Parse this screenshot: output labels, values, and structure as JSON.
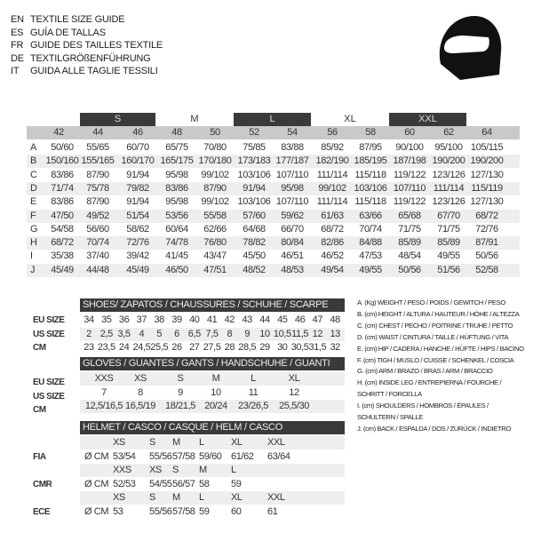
{
  "titles": [
    {
      "code": "EN",
      "text": "TEXTILE SIZE GUIDE"
    },
    {
      "code": "ES",
      "text": "GUÍA DE TALLAS"
    },
    {
      "code": "FR",
      "text": "GUIDE DES TAILLES TEXTILE"
    },
    {
      "code": "DE",
      "text": "TEXTILGRÖßENFÜHRUNG"
    },
    {
      "code": "IT",
      "text": "GUIDA ALLE TAGLIE TESSILI"
    }
  ],
  "icon": "helmet-icon",
  "textile": {
    "size_bands": [
      "S",
      "M",
      "L",
      "XL",
      "XXL"
    ],
    "columns": [
      "42",
      "44",
      "46",
      "48",
      "50",
      "52",
      "54",
      "56",
      "58",
      "60",
      "62",
      "64"
    ],
    "rows": [
      {
        "label": "A",
        "values": [
          "50/60",
          "55/65",
          "60/70",
          "65/75",
          "70/80",
          "75/85",
          "83/88",
          "85/92",
          "87/95",
          "90/100",
          "95/100",
          "105/115"
        ]
      },
      {
        "label": "B",
        "values": [
          "150/160",
          "155/165",
          "160/170",
          "165/175",
          "170/180",
          "173/183",
          "177/187",
          "182/190",
          "185/195",
          "187/198",
          "190/200",
          "190/200"
        ]
      },
      {
        "label": "C",
        "values": [
          "83/86",
          "87/90",
          "91/94",
          "95/98",
          "99/102",
          "103/106",
          "107/110",
          "111/114",
          "115/118",
          "119/122",
          "123/126",
          "127/130"
        ]
      },
      {
        "label": "D",
        "values": [
          "71/74",
          "75/78",
          "79/82",
          "83/86",
          "87/90",
          "91/94",
          "95/98",
          "99/102",
          "103/106",
          "107/110",
          "111/114",
          "115/119"
        ]
      },
      {
        "label": "E",
        "values": [
          "83/86",
          "87/90",
          "91/94",
          "95/98",
          "99/102",
          "103/106",
          "107/110",
          "111/114",
          "115/118",
          "119/122",
          "123/126",
          "127/130"
        ]
      },
      {
        "label": "F",
        "values": [
          "47/50",
          "49/52",
          "51/54",
          "53/56",
          "55/58",
          "57/60",
          "59/62",
          "61/63",
          "63/66",
          "65/68",
          "67/70",
          "68/72"
        ]
      },
      {
        "label": "G",
        "values": [
          "54/58",
          "56/60",
          "58/62",
          "60/64",
          "62/66",
          "64/68",
          "66/70",
          "68/72",
          "70/74",
          "71/75",
          "71/75",
          "72/76"
        ]
      },
      {
        "label": "H",
        "values": [
          "68/72",
          "70/74",
          "72/76",
          "74/78",
          "76/80",
          "78/82",
          "80/84",
          "82/86",
          "84/88",
          "85/89",
          "85/89",
          "87/91"
        ]
      },
      {
        "label": "I",
        "values": [
          "35/38",
          "37/40",
          "39/42",
          "41/45",
          "43/47",
          "45/50",
          "46/51",
          "46/52",
          "47/53",
          "48/54",
          "49/55",
          "50/56"
        ]
      },
      {
        "label": "J",
        "values": [
          "45/49",
          "44/48",
          "45/49",
          "46/50",
          "47/51",
          "48/52",
          "48/53",
          "49/54",
          "49/55",
          "50/56",
          "51/56",
          "52/58"
        ]
      }
    ]
  },
  "shoes": {
    "title": "SHOES/ ZAPATOS / CHAUSSURES / SCHUHE / SCARPE",
    "rows": [
      {
        "label": "EU SIZE",
        "values": [
          "34",
          "35",
          "36",
          "37",
          "38",
          "39",
          "40",
          "41",
          "42",
          "43",
          "44",
          "45",
          "46",
          "47",
          "48"
        ]
      },
      {
        "label": "US SIZE",
        "values": [
          "2",
          "2,5",
          "3,5",
          "4",
          "5",
          "6",
          "6,5",
          "7,5",
          "8",
          "9",
          "10",
          "10,5",
          "11,5",
          "12",
          "13"
        ]
      },
      {
        "label": "CM",
        "values": [
          "23",
          "23,5",
          "24",
          "24,5",
          "25,5",
          "26",
          "27",
          "27,5",
          "28",
          "28,5",
          "29",
          "30",
          "30,5",
          "31,5",
          "32"
        ]
      }
    ]
  },
  "gloves": {
    "title": "GLOVES / GUANTES / GANTS / HANDSCHUHE / GUANTI",
    "rows": [
      {
        "label": "EU SIZE",
        "values": [
          "XXS",
          "XS",
          "S",
          "M",
          "L",
          "XL"
        ]
      },
      {
        "label": "US SIZE",
        "values": [
          "7",
          "8",
          "9",
          "10",
          "11",
          "12"
        ]
      },
      {
        "label": "CM",
        "values": [
          "12,5/16,5",
          "16,5/19",
          "18/21,5",
          "20/24",
          "23/26,5",
          "25,5/30"
        ]
      }
    ]
  },
  "helmet": {
    "title": "HELMET / CASCO / CASQUE / HELM / CASCO",
    "unit": "Ø CM",
    "groups": [
      {
        "label": "FIA",
        "sizes": [
          "XS",
          "S",
          "M",
          "L",
          "XL",
          "XXL"
        ],
        "values": [
          "53/54",
          "55/56",
          "57/58",
          "59/60",
          "61/62",
          "63/64"
        ]
      },
      {
        "label": "CMR",
        "sizes": [
          "XXS",
          "XS",
          "S",
          "M",
          "L"
        ],
        "values": [
          "52/53",
          "54/55",
          "56/57",
          "58",
          "59"
        ]
      },
      {
        "label": "ECE",
        "sizes": [
          "XS",
          "S",
          "M",
          "L",
          "XL",
          "XXL"
        ],
        "values": [
          "53",
          "55/56",
          "57/58",
          "59",
          "60",
          "61"
        ]
      }
    ]
  },
  "legend": [
    "A. (Kg) WEIGHT / PESO / POIDS / GEWITCH / PESO",
    "B. (cm) HEIGHT / ALTURA / HAUTEUR / HÖHE / ALTEZZA",
    "C. (cm) CHEST / PECHO / POITRINE / TRUHE / PETTO",
    "D. (cm) WAIST / CINTURA / TAILLE / HÜFTUNG / VITA",
    "E. (cm) HIP / CADERA / HANCHE / HÜFTE / HIPS / BACINO",
    "F. (cm) TIGH / MUSLO / CUISSE / SCHENKEL / COSCIA",
    "G. (cm) ARM / BRAZO / BRAS / ARM / BRACCIO",
    "H. (cm) INSIDE LEG / ENTREPIERNA / FOURCHE /",
    "SCHRITT / FORCELLA",
    "I. (cm) SHOULDERS / HOMBROS / ÉPAULES /",
    "SCHULTERN / SPALLE",
    "J. (cm) BACK / ESPALDA / DOS / ZURÜCK / INDIETRO"
  ]
}
